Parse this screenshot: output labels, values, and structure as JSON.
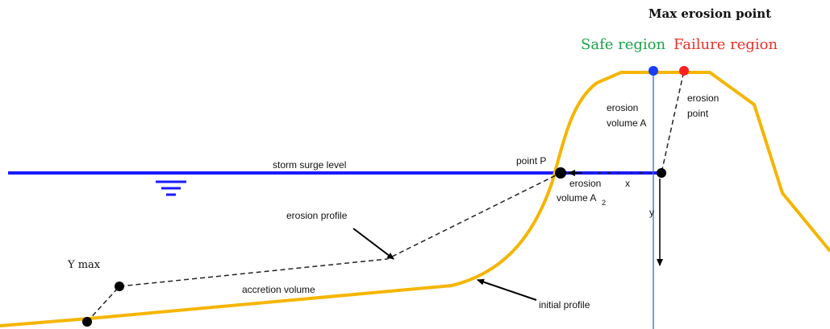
{
  "title": "Max erosion point",
  "regions": {
    "safe": "Safe region",
    "failure": "Failure region"
  },
  "labels": {
    "erosion_volume_a": [
      "erosion",
      "volume A"
    ],
    "erosion_point": [
      "erosion",
      "point"
    ],
    "storm_surge_level": "storm surge level",
    "point_p": "point P",
    "erosion_volume_a2": {
      "lines": [
        "erosion",
        "volume A"
      ],
      "subscript": "2"
    },
    "x_axis": "x",
    "y_axis": "y",
    "erosion_profile": "erosion profile",
    "y_max": "Y max",
    "accretion_volume": "accretion volume",
    "initial_profile": "initial profile"
  }
}
